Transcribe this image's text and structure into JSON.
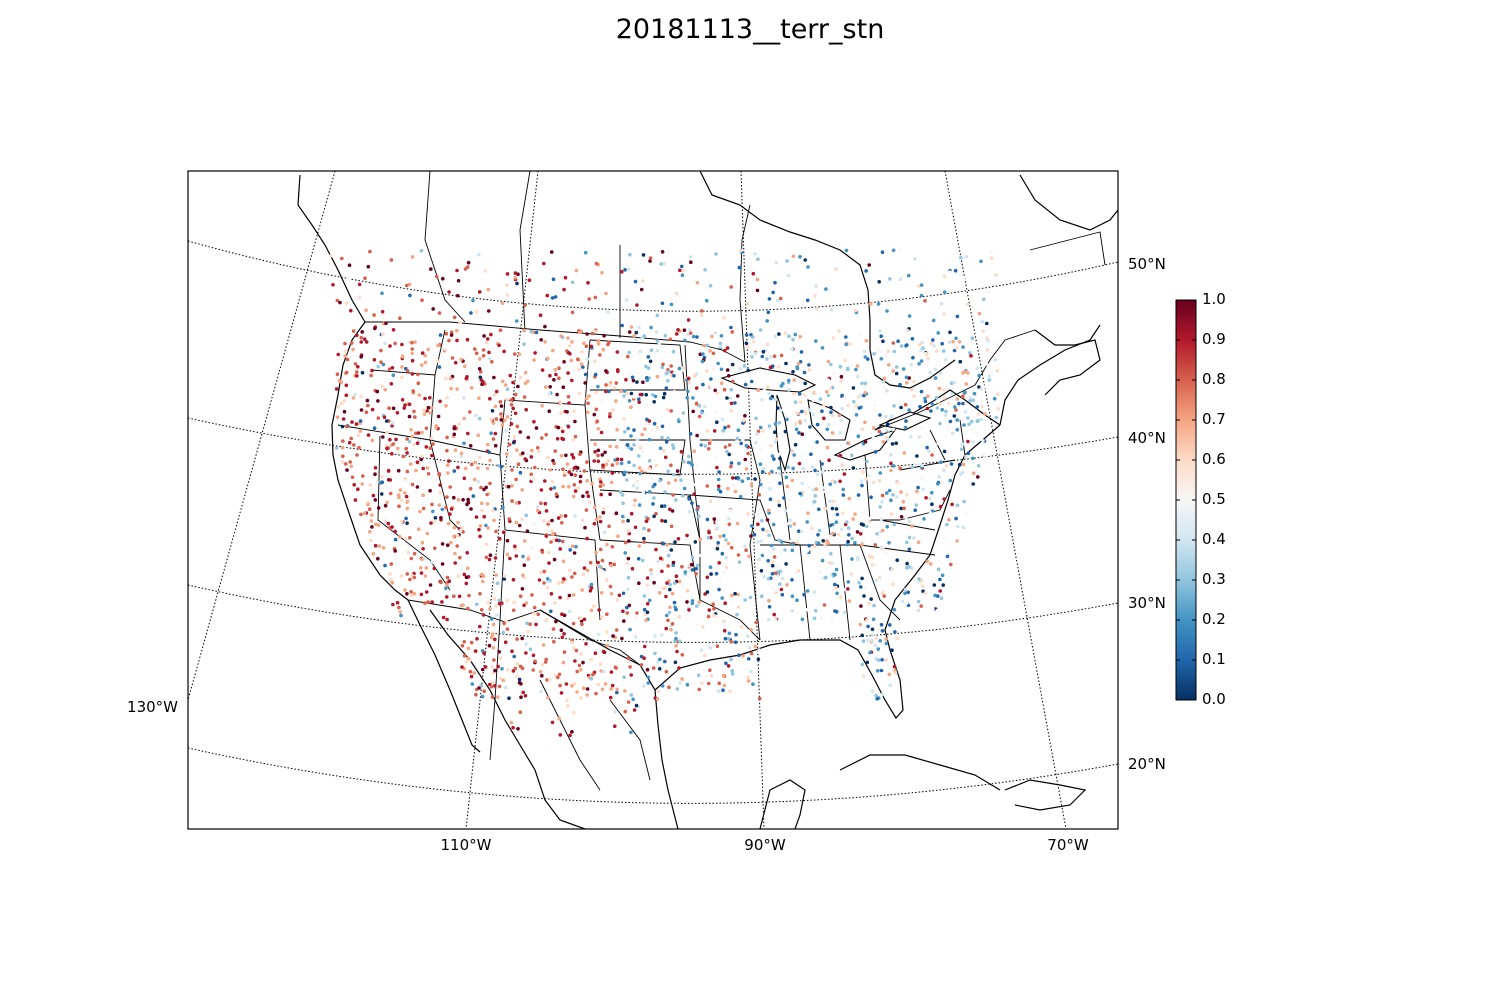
{
  "title": "20181113__terr_stn",
  "lon_labels": [
    "130°W",
    "110°W",
    "90°W",
    "70°W"
  ],
  "lat_labels": [
    "50°N",
    "40°N",
    "30°N",
    "20°N"
  ],
  "colorbar": {
    "ticks": [
      "1.0",
      "0.9",
      "0.8",
      "0.7",
      "0.6",
      "0.5",
      "0.4",
      "0.3",
      "0.2",
      "0.1",
      "0.0"
    ],
    "colors": [
      "#67001f",
      "#b2182b",
      "#d6604d",
      "#f4a582",
      "#fddbc7",
      "#f7f7f7",
      "#d1e5f0",
      "#92c5de",
      "#4393c3",
      "#2166ac",
      "#053061"
    ]
  },
  "map": {
    "projection": "lambert-conformal",
    "region": "North America (CONUS, southern Canada, Mexico, Caribbean)",
    "plot_type": "station scatter colored by value 0–1"
  }
}
